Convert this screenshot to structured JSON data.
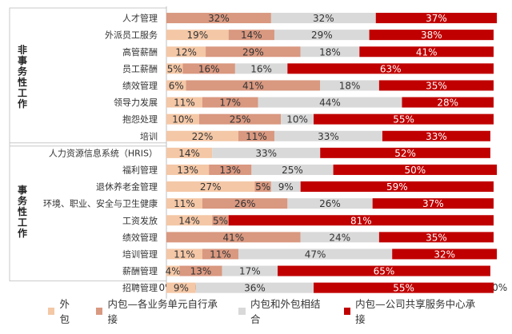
{
  "chart_data": {
    "type": "bar",
    "orientation": "horizontal",
    "stacked": true,
    "percent": true,
    "title": "",
    "xlabel": "",
    "ylabel": "",
    "xlim": [
      0,
      100
    ],
    "x_ticks": [
      "0%",
      "10%",
      "20%",
      "30%",
      "40%",
      "50%",
      "60%",
      "70%",
      "80%",
      "90%",
      "100%"
    ],
    "grid": false,
    "legend_position": "bottom",
    "groups": [
      {
        "label": "非事务性工作",
        "first": 0,
        "last": 7
      },
      {
        "label": "事务性工作",
        "first": 8,
        "last": 15
      }
    ],
    "categories": [
      "人才管理",
      "外派员工服务",
      "高管薪酬",
      "员工薪酬",
      "绩效管理",
      "领导力发展",
      "抱怨处理",
      "培训",
      "人力资源信息系统（HRIS）",
      "福利管理",
      "退休养老金管理",
      "环境、职业、安全与卫生健康",
      "工资发放",
      "绩效管理",
      "培训管理",
      "薪酬管理",
      "招聘管理"
    ],
    "series": [
      {
        "name": "外包",
        "color": "#f4c7a6",
        "values": [
          0,
          19,
          12,
          5,
          6,
          11,
          10,
          22,
          14,
          13,
          27,
          11,
          14,
          0,
          11,
          4,
          9
        ]
      },
      {
        "name": "内包—各业务单元自行承接",
        "color": "#d99880",
        "values": [
          32,
          14,
          29,
          16,
          41,
          17,
          25,
          11,
          0,
          13,
          5,
          26,
          5,
          41,
          11,
          13,
          0
        ]
      },
      {
        "name": "内包和外包相结合",
        "color": "#d9d9d9",
        "values": [
          32,
          29,
          18,
          16,
          18,
          44,
          10,
          33,
          33,
          25,
          9,
          26,
          0,
          24,
          47,
          17,
          36
        ]
      },
      {
        "name": "内包—公司共享服务中心承接",
        "color": "#c00000",
        "values": [
          37,
          38,
          41,
          63,
          35,
          28,
          55,
          33,
          52,
          50,
          59,
          37,
          81,
          35,
          32,
          65,
          55
        ]
      }
    ]
  }
}
